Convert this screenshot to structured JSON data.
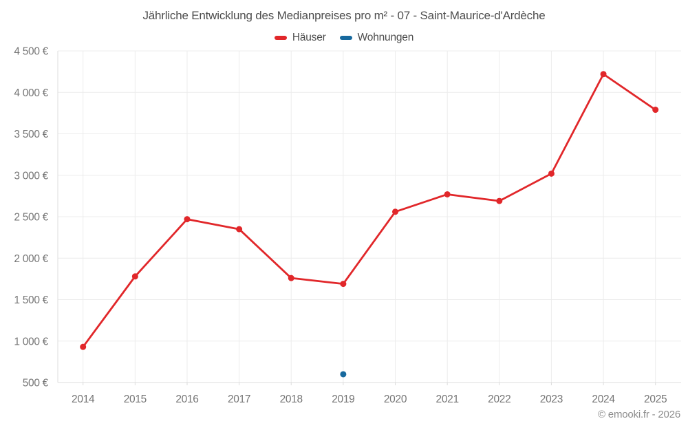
{
  "title": "Jährliche Entwicklung des Medianpreises pro m² - 07 - Saint-Maurice-d'Ardèche",
  "legend": [
    {
      "label": "Häuser",
      "color": "#e1272a"
    },
    {
      "label": "Wohnungen",
      "color": "#17699e"
    }
  ],
  "footer": {
    "copyright": "© emooki.fr - 2026"
  },
  "chart_data": {
    "type": "line",
    "title": "Jährliche Entwicklung des Medianpreises pro m² - 07 - Saint-Maurice-d'Ardèche",
    "x": [
      2014,
      2015,
      2016,
      2017,
      2018,
      2019,
      2020,
      2021,
      2022,
      2023,
      2024,
      2025
    ],
    "series": [
      {
        "name": "Häuser",
        "color": "#e1272a",
        "values": [
          930,
          1780,
          2470,
          2350,
          1760,
          1690,
          2560,
          2770,
          2690,
          3020,
          4220,
          3790
        ]
      },
      {
        "name": "Wohnungen",
        "color": "#17699e",
        "values": [
          null,
          null,
          null,
          null,
          null,
          600,
          null,
          null,
          null,
          null,
          null,
          null
        ]
      }
    ],
    "yticks": [
      500,
      1000,
      1500,
      2000,
      2500,
      3000,
      3500,
      4000,
      4500
    ],
    "ylim": [
      500,
      4500
    ],
    "y_unit": "€",
    "grid": true,
    "legend_position": "top",
    "marker_radius": 4.5,
    "line_width": 2.8
  }
}
